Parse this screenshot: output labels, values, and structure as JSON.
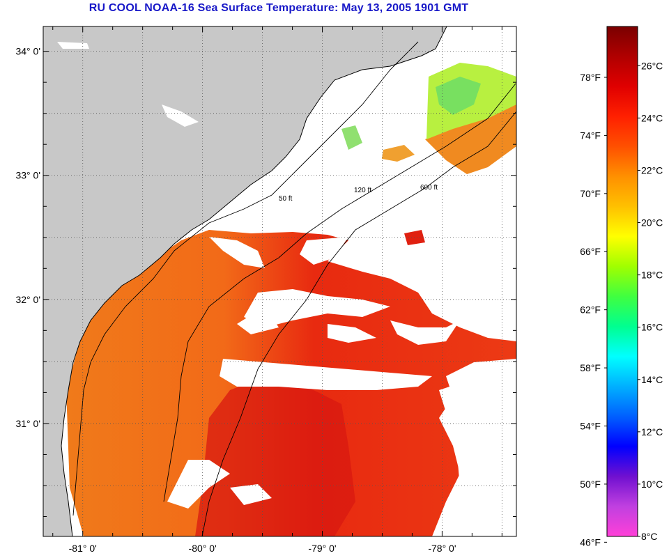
{
  "title": "RU COOL  NOAA-16  Sea Surface Temperature:  May 13, 2005 1901 GMT",
  "map": {
    "lon_range": [
      -81.33,
      -77.38
    ],
    "lat_range": [
      30.09,
      34.2
    ],
    "lat_ticks": [
      {
        "value": 34,
        "label": "34° 0'"
      },
      {
        "value": 33,
        "label": "33° 0'"
      },
      {
        "value": 32,
        "label": "32° 0'"
      },
      {
        "value": 31,
        "label": "31° 0'"
      }
    ],
    "lon_ticks": [
      {
        "value": -81,
        "label": "-81° 0'"
      },
      {
        "value": -80,
        "label": "-80° 0'"
      },
      {
        "value": -79,
        "label": "-79° 0'"
      },
      {
        "value": -78,
        "label": "-78° 0'"
      }
    ],
    "grid": "dotted",
    "land_color": "#c8c8c8",
    "cloud_color": "#ffffff",
    "contour_labels": [
      "50 ft",
      "120 ft",
      "600 ft"
    ]
  },
  "colorbar": {
    "fahrenheit_labels": [
      "78°F",
      "74°F",
      "70°F",
      "66°F",
      "62°F",
      "58°F",
      "54°F",
      "50°F",
      "46°F"
    ],
    "celsius_labels": [
      "26°C",
      "24°C",
      "22°C",
      "20°C",
      "18°C",
      "16°C",
      "14°C",
      "12°C",
      "10°C",
      "8°C"
    ],
    "range_c": [
      8,
      27.5
    ],
    "colors": [
      "#ff40d8",
      "#c040e0",
      "#7010d0",
      "#0000ff",
      "#0060ff",
      "#00b0ff",
      "#00ffff",
      "#00ff90",
      "#40ff40",
      "#a0ff00",
      "#ffff00",
      "#ffc000",
      "#ff9000",
      "#ff5000",
      "#ff2000",
      "#e00000",
      "#b00000",
      "#7a0000"
    ]
  },
  "legend_colors": {
    "warm_red": "#e81a0f",
    "orange": "#f07818",
    "yellow_green": "#c8f030",
    "green": "#70e060"
  }
}
